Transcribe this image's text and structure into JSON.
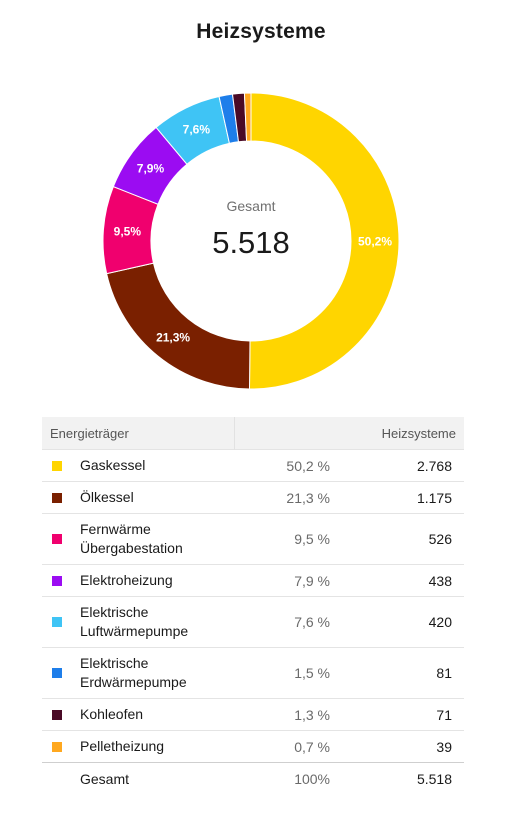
{
  "title": "Heizsysteme",
  "center": {
    "label": "Gesamt",
    "value": "5.518"
  },
  "table": {
    "header": {
      "name": "Energieträger",
      "value": "Heizsysteme"
    },
    "total": {
      "label": "Gesamt",
      "percent": "100%",
      "value": "5.518"
    }
  },
  "chart_data": {
    "type": "pie",
    "title": "Heizsysteme",
    "donut": true,
    "total": 5518,
    "slices": [
      {
        "name": "Gaskessel",
        "value": 2768,
        "percent": "50,2 %",
        "label": "50,2%",
        "color": "#FFD500"
      },
      {
        "name": "Ölkessel",
        "value": 1175,
        "percent": "21,3 %",
        "label": "21,3%",
        "color": "#7A2000"
      },
      {
        "name": "Fernwärme Übergabestation",
        "value": 526,
        "percent": "9,5 %",
        "label": "9,5%",
        "color": "#F0006E"
      },
      {
        "name": "Elektroheizung",
        "value": 438,
        "percent": "7,9 %",
        "label": "7,9%",
        "color": "#9B0CF2"
      },
      {
        "name": "Elektrische Luftwärmepumpe",
        "value": 420,
        "percent": "7,6 %",
        "label": "7,6%",
        "color": "#3FC4F5"
      },
      {
        "name": "Elektrische Erdwärmepumpe",
        "value": 81,
        "percent": "1,5 %",
        "label": "",
        "color": "#1E7EEA"
      },
      {
        "name": "Kohleofen",
        "value": 71,
        "percent": "1,3 %",
        "label": "",
        "color": "#4A0A26"
      },
      {
        "name": "Pelletheizung",
        "value": 39,
        "percent": "0,7 %",
        "label": "",
        "color": "#FFA81F"
      }
    ]
  }
}
